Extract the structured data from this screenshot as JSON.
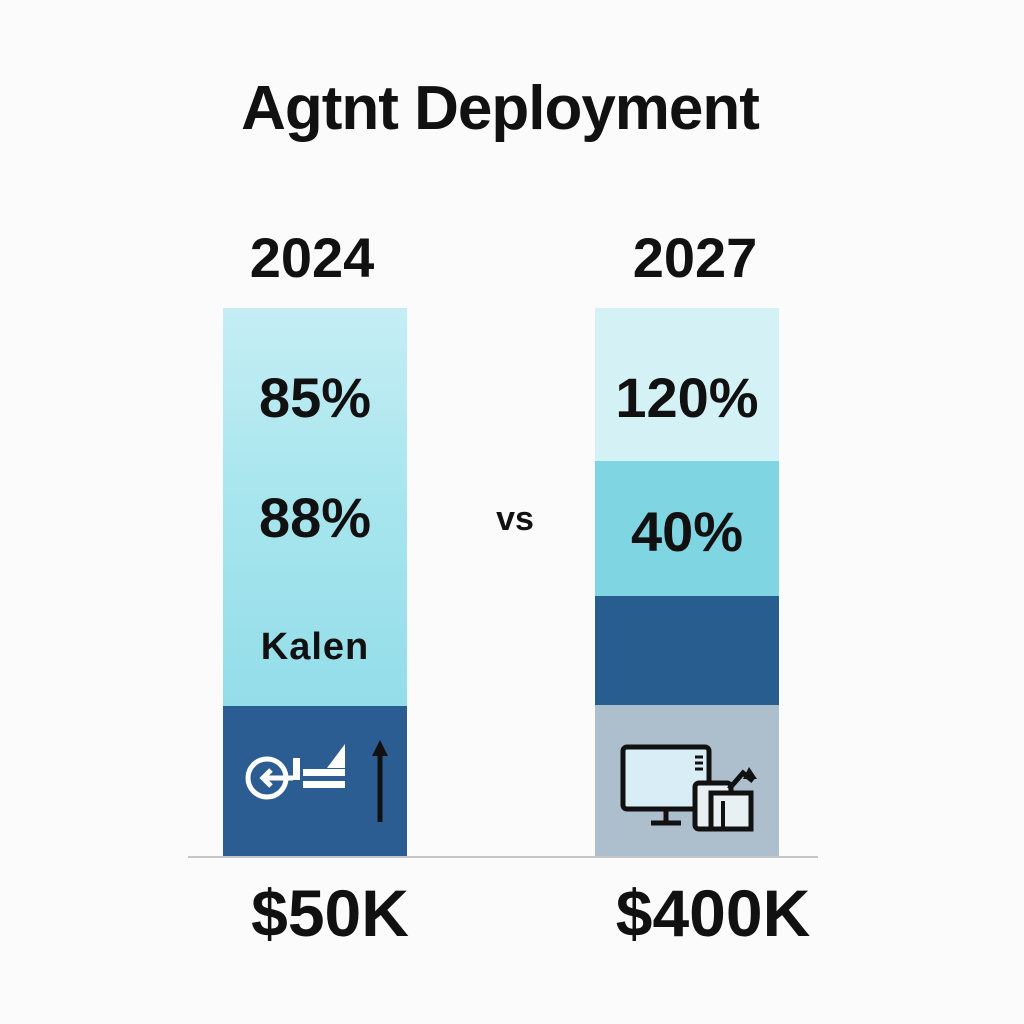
{
  "title": "Agtnt Deployment",
  "comparison_label": "vs",
  "chart_data": {
    "type": "bar",
    "stacked": true,
    "title": "Agtnt Deployment",
    "categories": [
      "2024",
      "2027"
    ],
    "columns": [
      {
        "year": "2024",
        "cost": "$50K",
        "segments": [
          {
            "label": "85%",
            "color": "#b3e8f0"
          },
          {
            "label": "88%",
            "color": "#a0e1eb"
          },
          {
            "label": "Kalеn",
            "color": "#94dde9"
          },
          {
            "label": "",
            "icon": "target-arrow-growth-icon",
            "color": "#2c5d92"
          }
        ]
      },
      {
        "year": "2027",
        "cost": "$400K",
        "segments": [
          {
            "label": "120%",
            "color": "#d4f1f6"
          },
          {
            "label": "40%",
            "color": "#80d5e2"
          },
          {
            "label": "",
            "color": "#275d8f"
          },
          {
            "label": "",
            "icon": "computer-monitor-robot-icon",
            "color": "#adbfcc"
          }
        ]
      }
    ],
    "grid": false,
    "legend": "none"
  },
  "colors": {
    "background": "#fbfbfb",
    "text": "#111111",
    "light_cyan": "#c6edf4",
    "cyan": "#80d5e2",
    "navy": "#2a5d90",
    "gray_blue": "#adbfcc"
  }
}
